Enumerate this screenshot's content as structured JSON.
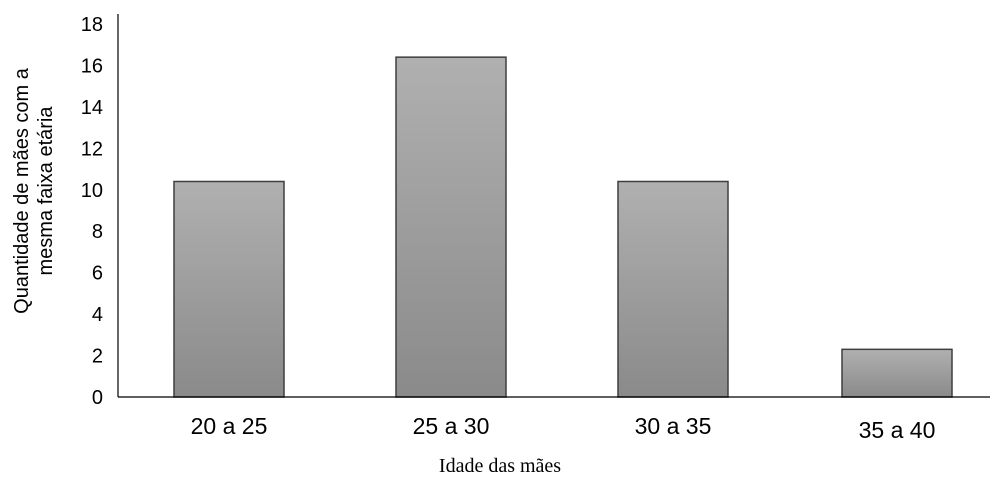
{
  "chart_data": {
    "type": "bar",
    "categories": [
      "20 a 25",
      "25 a 30",
      "30 a 35",
      "35 a 40"
    ],
    "values": [
      10.4,
      16.4,
      10.4,
      2.3
    ],
    "title": "",
    "xlabel": "Idade das mães",
    "ylabel_lines": [
      "Quantidade de mães com a",
      "mesma faixa etária"
    ],
    "ylim": [
      0,
      18
    ],
    "yticks": [
      0,
      2,
      4,
      6,
      8,
      10,
      12,
      14,
      16,
      18
    ],
    "grid": false,
    "legend": "none",
    "bar_color_top": "#b0b0b0",
    "bar_color_bottom": "#8a8a8a"
  }
}
